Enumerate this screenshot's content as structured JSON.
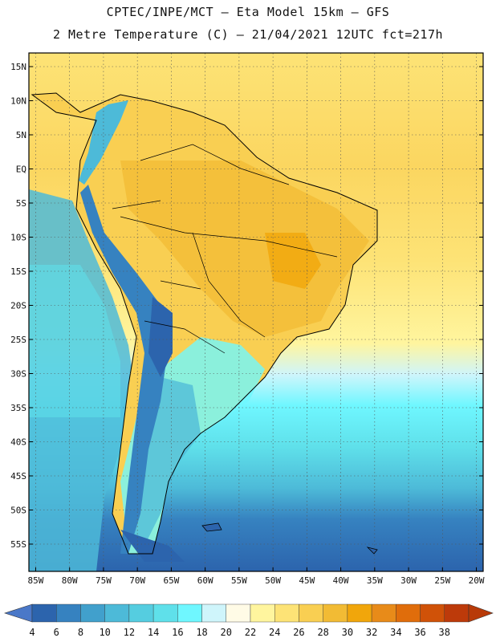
{
  "header": {
    "line1": "CPTEC/INPE/MCT –  Eta Model 15km – GFS",
    "line2": "2 Metre Temperature (C) – 21/04/2021 12UTC fct=217h"
  },
  "map": {
    "lon_range": [
      -86,
      -19
    ],
    "lat_range": [
      -59,
      17
    ],
    "lat_ticks": [
      {
        "v": 15,
        "label": "15N"
      },
      {
        "v": 10,
        "label": "10N"
      },
      {
        "v": 5,
        "label": "5N"
      },
      {
        "v": 0,
        "label": "EQ"
      },
      {
        "v": -5,
        "label": "5S"
      },
      {
        "v": -10,
        "label": "10S"
      },
      {
        "v": -15,
        "label": "15S"
      },
      {
        "v": -20,
        "label": "20S"
      },
      {
        "v": -25,
        "label": "25S"
      },
      {
        "v": -30,
        "label": "30S"
      },
      {
        "v": -35,
        "label": "35S"
      },
      {
        "v": -40,
        "label": "40S"
      },
      {
        "v": -45,
        "label": "45S"
      },
      {
        "v": -50,
        "label": "50S"
      },
      {
        "v": -55,
        "label": "55S"
      }
    ],
    "lon_ticks": [
      {
        "v": -85,
        "label": "85W"
      },
      {
        "v": -80,
        "label": "80W"
      },
      {
        "v": -75,
        "label": "75W"
      },
      {
        "v": -70,
        "label": "70W"
      },
      {
        "v": -65,
        "label": "65W"
      },
      {
        "v": -60,
        "label": "60W"
      },
      {
        "v": -55,
        "label": "55W"
      },
      {
        "v": -50,
        "label": "50W"
      },
      {
        "v": -45,
        "label": "45W"
      },
      {
        "v": -40,
        "label": "40W"
      },
      {
        "v": -35,
        "label": "35W"
      },
      {
        "v": -30,
        "label": "30W"
      },
      {
        "v": -25,
        "label": "25W"
      },
      {
        "v": -20,
        "label": "20W"
      }
    ]
  },
  "colorbar": {
    "under_color": "#4a78c8",
    "over_color": "#b83a08",
    "colors": [
      "#2c64ad",
      "#3682c0",
      "#41a0cc",
      "#4dbad8",
      "#55cde0",
      "#5fe0ea",
      "#6ff7ff",
      "#cff5fb",
      "#fffbe6",
      "#fff59e",
      "#fde376",
      "#f9cf52",
      "#f2bb34",
      "#f1a60b",
      "#e88b19",
      "#e06d0b",
      "#d05208",
      "#bd3a0a"
    ],
    "labels": [
      "4",
      "6",
      "8",
      "10",
      "12",
      "14",
      "16",
      "18",
      "20",
      "22",
      "24",
      "26",
      "28",
      "30",
      "32",
      "34",
      "36",
      "38"
    ]
  }
}
